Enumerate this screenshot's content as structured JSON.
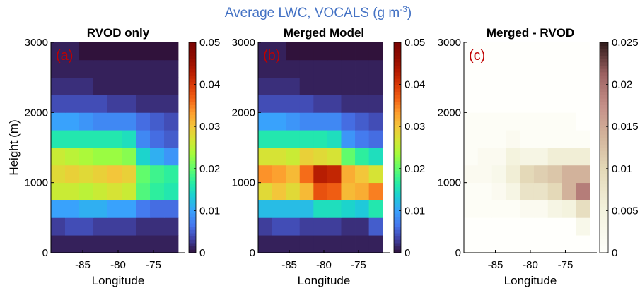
{
  "figure": {
    "title_main": "Average LWC, VOCALS (g m",
    "title_sup": "-3",
    "title_end": ")",
    "title_color": "#4472c4",
    "panel_label_color": "#c00000"
  },
  "chart_data": [
    {
      "type": "heatmap",
      "panel_label": "(a)",
      "title": "RVOD only",
      "xlabel": "Longitude",
      "ylabel": "Height (m)",
      "x_ticks": [
        -85,
        -80,
        -75
      ],
      "y_ticks": [
        0,
        1000,
        2000,
        3000
      ],
      "x_range": [
        -89.5,
        -70.5
      ],
      "y_range": [
        0,
        3000
      ],
      "colormap": "turbo",
      "clim": [
        0,
        0.05
      ],
      "colorbar_ticks": [
        "0",
        "0.01",
        "0.02",
        "0.03",
        "0.04",
        "0.05"
      ],
      "x_centers": [
        -88.5,
        -86.5,
        -84.5,
        -82.5,
        -80.5,
        -78.5,
        -76.5,
        -74.5,
        -72.5
      ],
      "y_centers": [
        125,
        375,
        625,
        875,
        1125,
        1375,
        1625,
        1875,
        2125,
        2375,
        2625,
        2875
      ],
      "z": [
        [
          0.001,
          0.001,
          0.001,
          0.001,
          0.001,
          0.001,
          0.001,
          0.001,
          0.001
        ],
        [
          0.003,
          0.004,
          0.004,
          0.003,
          0.003,
          0.003,
          0.002,
          0.002,
          0.002
        ],
        [
          0.01,
          0.01,
          0.011,
          0.011,
          0.01,
          0.01,
          0.007,
          0.006,
          0.006
        ],
        [
          0.026,
          0.026,
          0.025,
          0.026,
          0.027,
          0.026,
          0.019,
          0.017,
          0.016
        ],
        [
          0.028,
          0.029,
          0.028,
          0.029,
          0.03,
          0.029,
          0.02,
          0.018,
          0.017
        ],
        [
          0.026,
          0.025,
          0.024,
          0.023,
          0.023,
          0.022,
          0.014,
          0.011,
          0.009
        ],
        [
          0.016,
          0.016,
          0.016,
          0.016,
          0.016,
          0.015,
          0.008,
          0.006,
          0.005
        ],
        [
          0.01,
          0.01,
          0.009,
          0.008,
          0.008,
          0.008,
          0.006,
          0.005,
          0.004
        ],
        [
          0.004,
          0.004,
          0.004,
          0.004,
          0.003,
          0.003,
          0.002,
          0.002,
          0.002
        ],
        [
          0.002,
          0.002,
          0.002,
          0.001,
          0.001,
          0.001,
          0.001,
          0.001,
          0.001
        ],
        [
          0.001,
          0.001,
          0.001,
          0.001,
          0.001,
          0.001,
          0.001,
          0.001,
          0.001
        ],
        [
          0.001,
          0.001,
          0.0,
          0.0,
          0.0,
          0.0,
          0.0,
          0.0,
          0.0
        ]
      ]
    },
    {
      "type": "heatmap",
      "panel_label": "(b)",
      "title": "Merged Model",
      "xlabel": "Longitude",
      "ylabel": "",
      "x_ticks": [
        -85,
        -80,
        -75
      ],
      "y_ticks": [
        0,
        1000,
        2000,
        3000
      ],
      "x_range": [
        -89.5,
        -70.5
      ],
      "y_range": [
        0,
        3000
      ],
      "colormap": "turbo",
      "clim": [
        0,
        0.05
      ],
      "colorbar_ticks": [
        "0",
        "0.01",
        "0.02",
        "0.03",
        "0.04",
        "0.05"
      ],
      "x_centers": [
        -88.5,
        -86.5,
        -84.5,
        -82.5,
        -80.5,
        -78.5,
        -76.5,
        -74.5,
        -72.5
      ],
      "y_centers": [
        125,
        375,
        625,
        875,
        1125,
        1375,
        1625,
        1875,
        2125,
        2375,
        2625,
        2875
      ],
      "z": [
        [
          0.001,
          0.001,
          0.001,
          0.001,
          0.001,
          0.001,
          0.001,
          0.001,
          0.001
        ],
        [
          0.003,
          0.004,
          0.004,
          0.003,
          0.003,
          0.003,
          0.002,
          0.002,
          0.005
        ],
        [
          0.012,
          0.012,
          0.012,
          0.012,
          0.015,
          0.015,
          0.014,
          0.013,
          0.016
        ],
        [
          0.028,
          0.03,
          0.028,
          0.031,
          0.038,
          0.037,
          0.031,
          0.032,
          0.035
        ],
        [
          0.034,
          0.033,
          0.031,
          0.036,
          0.043,
          0.042,
          0.032,
          0.03,
          0.027
        ],
        [
          0.027,
          0.027,
          0.026,
          0.029,
          0.028,
          0.027,
          0.02,
          0.017,
          0.015
        ],
        [
          0.016,
          0.016,
          0.016,
          0.016,
          0.016,
          0.015,
          0.009,
          0.007,
          0.006
        ],
        [
          0.01,
          0.01,
          0.009,
          0.008,
          0.008,
          0.008,
          0.006,
          0.005,
          0.004
        ],
        [
          0.004,
          0.004,
          0.004,
          0.004,
          0.003,
          0.003,
          0.002,
          0.002,
          0.002
        ],
        [
          0.002,
          0.002,
          0.002,
          0.001,
          0.001,
          0.001,
          0.001,
          0.001,
          0.001
        ],
        [
          0.001,
          0.001,
          0.001,
          0.001,
          0.001,
          0.001,
          0.001,
          0.001,
          0.001
        ],
        [
          0.001,
          0.001,
          0.0,
          0.0,
          0.0,
          0.0,
          0.0,
          0.0,
          0.0
        ]
      ]
    },
    {
      "type": "heatmap",
      "panel_label": "(c)",
      "title": "Merged - RVOD",
      "xlabel": "Longitude",
      "ylabel": "",
      "x_ticks": [
        -85,
        -80,
        -75
      ],
      "y_ticks": [
        0,
        1000,
        2000,
        3000
      ],
      "x_range": [
        -89.5,
        -70.5
      ],
      "y_range": [
        0,
        3000
      ],
      "colormap": "pink",
      "clim": [
        0,
        0.025
      ],
      "colorbar_ticks": [
        "0",
        "0.005",
        "0.01",
        "0.015",
        "0.02",
        "0.025"
      ],
      "x_centers": [
        -88.5,
        -86.5,
        -84.5,
        -82.5,
        -80.5,
        -78.5,
        -76.5,
        -74.5,
        -72.5
      ],
      "y_centers": [
        125,
        375,
        625,
        875,
        1125,
        1375,
        1625,
        1875,
        2125,
        2375,
        2625,
        2875
      ],
      "z": [
        [
          0.0,
          0.0,
          0.0,
          0.0,
          0.0,
          0.0,
          0.0,
          0.0,
          0.0
        ],
        [
          0.0,
          0.0,
          0.0,
          0.0,
          0.0,
          0.0,
          0.0,
          0.0,
          0.003
        ],
        [
          0.001,
          0.001,
          0.001,
          0.001,
          0.002,
          0.002,
          0.004,
          0.005,
          0.009
        ],
        [
          0.001,
          0.001,
          0.002,
          0.004,
          0.008,
          0.008,
          0.01,
          0.014,
          0.019
        ],
        [
          0.002,
          0.002,
          0.003,
          0.006,
          0.01,
          0.011,
          0.012,
          0.014,
          0.014
        ],
        [
          0.001,
          0.002,
          0.002,
          0.005,
          0.004,
          0.004,
          0.006,
          0.006,
          0.006
        ],
        [
          0.001,
          0.001,
          0.001,
          0.002,
          0.001,
          0.001,
          0.001,
          0.001,
          0.001
        ],
        [
          0.001,
          0.001,
          0.001,
          0.001,
          0.001,
          0.001,
          0.001,
          0.001,
          0.0
        ],
        [
          0.0,
          0.0,
          0.0,
          0.0,
          0.0,
          0.0,
          0.0,
          0.0,
          0.0
        ],
        [
          0.0,
          0.0,
          0.0,
          0.0,
          0.0,
          0.0,
          0.0,
          0.0,
          0.0
        ],
        [
          0.0,
          0.0,
          0.0,
          0.0,
          0.0,
          0.0,
          0.0,
          0.0,
          0.0
        ],
        [
          0.0,
          0.0,
          0.0,
          0.0,
          0.0,
          0.0,
          0.0,
          0.0,
          0.0
        ]
      ]
    }
  ]
}
